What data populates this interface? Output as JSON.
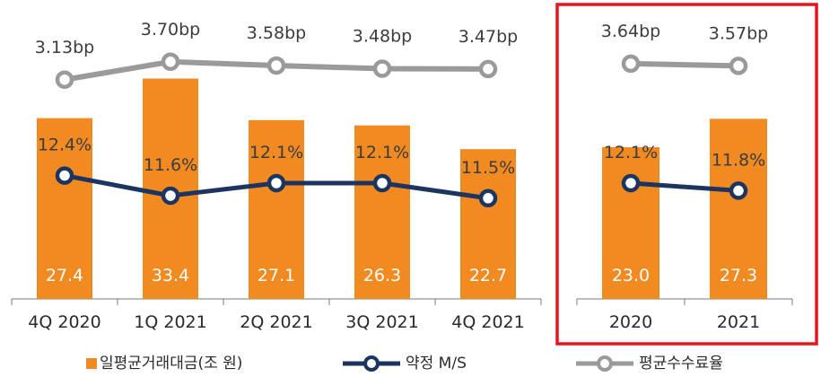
{
  "chart_data": [
    {
      "type": "bar",
      "categories": [
        "4Q 2020",
        "1Q 2021",
        "2Q 2021",
        "3Q 2021",
        "4Q 2021"
      ],
      "series": [
        {
          "name": "일평균거래대금(조 원)",
          "type": "bar",
          "values": [
            27.4,
            33.4,
            27.1,
            26.3,
            22.7
          ],
          "labels": [
            "27.4",
            "33.4",
            "27.1",
            "26.3",
            "22.7"
          ]
        },
        {
          "name": "약정 M/S",
          "type": "line",
          "values": [
            12.4,
            11.6,
            12.1,
            12.1,
            11.5
          ],
          "labels": [
            "12.4%",
            "11.6%",
            "12.1%",
            "12.1%",
            "11.5%"
          ]
        },
        {
          "name": "평균수수료율",
          "type": "line",
          "values": [
            3.13,
            3.7,
            3.58,
            3.48,
            3.47
          ],
          "labels": [
            "3.13bp",
            "3.70bp",
            "3.58bp",
            "3.48bp",
            "3.47bp"
          ]
        }
      ]
    },
    {
      "type": "bar",
      "categories": [
        "2020",
        "2021"
      ],
      "series": [
        {
          "name": "일평균거래대금(조 원)",
          "type": "bar",
          "values": [
            23.0,
            27.3
          ],
          "labels": [
            "23.0",
            "27.3"
          ]
        },
        {
          "name": "약정 M/S",
          "type": "line",
          "values": [
            12.1,
            11.8
          ],
          "labels": [
            "12.1%",
            "11.8%"
          ]
        },
        {
          "name": "평균수수료율",
          "type": "line",
          "values": [
            3.64,
            3.57
          ],
          "labels": [
            "3.64bp",
            "3.57bp"
          ]
        }
      ]
    }
  ],
  "legend": [
    {
      "label": "일평균거래대금(조 원)",
      "marker": "square"
    },
    {
      "label": "약정 M/S",
      "marker": "line-circle"
    },
    {
      "label": "평균수수료율",
      "marker": "line-circle"
    }
  ],
  "colors": {
    "bar": "#f28a22",
    "ms_line": "#1b3560",
    "fee_line": "#9a9a9a",
    "highlight_box": "#e8141b",
    "axis": "#7a7a7a"
  }
}
